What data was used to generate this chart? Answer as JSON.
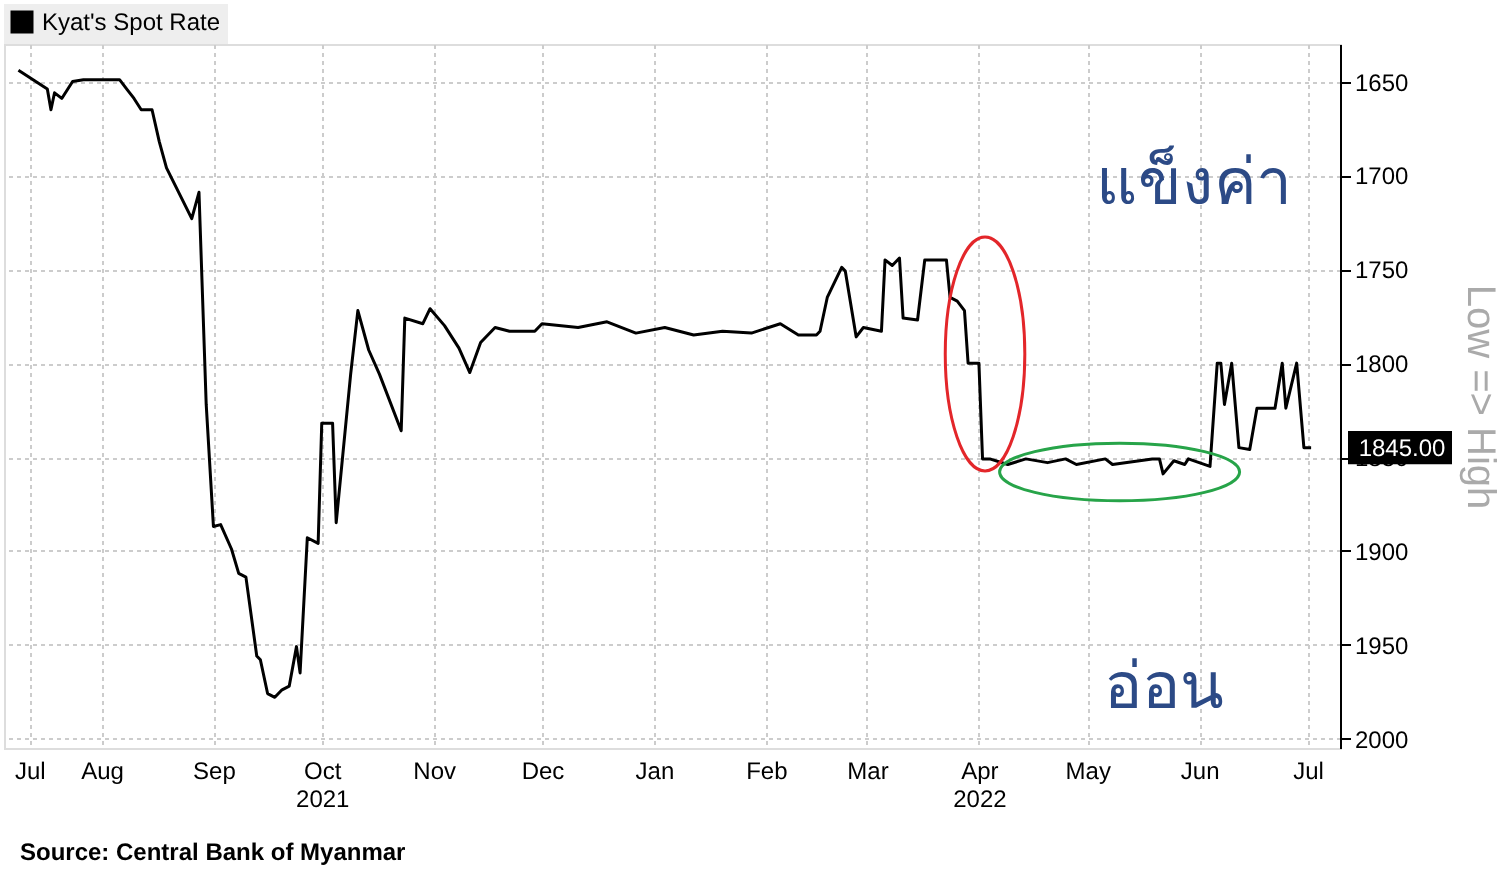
{
  "chart_data": {
    "type": "line",
    "ylabel": "Low => High",
    "legend": "top left",
    "grid": true,
    "line_style": "solid",
    "x": [
      "2021-07-23",
      "2021-07-31",
      "2021-08-01",
      "2021-08-02",
      "2021-08-04",
      "2021-08-07",
      "2021-08-10",
      "2021-08-20",
      "2021-08-22",
      "2021-08-24",
      "2021-08-26",
      "2021-08-29",
      "2021-08-31",
      "2021-09-02",
      "2021-09-09",
      "2021-09-11",
      "2021-09-13",
      "2021-09-15",
      "2021-09-17",
      "2021-09-20",
      "2021-09-22",
      "2021-09-24",
      "2021-09-27",
      "2021-09-28",
      "2021-09-30",
      "2021-10-02",
      "2021-10-04",
      "2021-10-06",
      "2021-10-08",
      "2021-10-09",
      "2021-10-11",
      "2021-10-14",
      "2021-10-15",
      "2021-10-18",
      "2021-10-19",
      "2021-10-23",
      "2021-10-25",
      "2021-10-28",
      "2021-10-31",
      "2021-11-06",
      "2021-11-07",
      "2021-11-12",
      "2021-11-14",
      "2021-11-18",
      "2021-11-22",
      "2021-11-25",
      "2021-11-28",
      "2021-12-02",
      "2021-12-06",
      "2021-12-13",
      "2021-12-15",
      "2021-12-25",
      "2022-01-02",
      "2022-01-10",
      "2022-01-18",
      "2022-01-26",
      "2022-02-03",
      "2022-02-11",
      "2022-02-19",
      "2022-02-24",
      "2022-02-27",
      "2022-03-01",
      "2022-03-02",
      "2022-03-04",
      "2022-03-05",
      "2022-03-08",
      "2022-03-09",
      "2022-03-12",
      "2022-03-14",
      "2022-03-19",
      "2022-03-20",
      "2022-03-22",
      "2022-03-24",
      "2022-03-25",
      "2022-03-29",
      "2022-03-31",
      "2022-04-05",
      "2022-04-06",
      "2022-04-07",
      "2022-04-09",
      "2022-04-11",
      "2022-04-12",
      "2022-04-15",
      "2022-04-16",
      "2022-04-18",
      "2022-04-23",
      "2022-04-28",
      "2022-05-04",
      "2022-05-09",
      "2022-05-12",
      "2022-05-20",
      "2022-05-22",
      "2022-06-02",
      "2022-06-04",
      "2022-06-05",
      "2022-06-08",
      "2022-06-11",
      "2022-06-12",
      "2022-06-18",
      "2022-06-20",
      "2022-06-21",
      "2022-06-22",
      "2022-06-24",
      "2022-06-26",
      "2022-06-29",
      "2022-07-01",
      "2022-07-06",
      "2022-07-08",
      "2022-07-09",
      "2022-07-12",
      "2022-07-14",
      "2022-07-16"
    ],
    "series": [
      {
        "name": "Kyat's Spot Rate",
        "color": "#000000",
        "values": [
          1644,
          1654,
          1665,
          1656,
          1659,
          1650,
          1649,
          1649,
          1654,
          1659,
          1665,
          1665,
          1682,
          1696,
          1723,
          1709,
          1822,
          1887,
          1886,
          1899,
          1912,
          1914,
          1956,
          1958,
          1976,
          1978,
          1974,
          1972,
          1951,
          1965,
          1893,
          1896,
          1832,
          1832,
          1885,
          1806,
          1772,
          1793,
          1806,
          1836,
          1776,
          1779,
          1771,
          1780,
          1792,
          1805,
          1789,
          1781,
          1783,
          1783,
          1779,
          1781,
          1778,
          1784,
          1781,
          1785,
          1783,
          1784,
          1779,
          1785,
          1785,
          1785,
          1783,
          1765,
          1761,
          1749,
          1751,
          1786,
          1781,
          1783,
          1745,
          1748,
          1744,
          1776,
          1777,
          1745,
          1745,
          1745,
          1765,
          1767,
          1772,
          1800,
          1800,
          1851,
          1851,
          1854,
          1851,
          1853,
          1851,
          1854,
          1851,
          1854,
          1851,
          1851,
          1859,
          1852,
          1854,
          1851,
          1855,
          1800,
          1800,
          1822,
          1800,
          1845,
          1846,
          1824,
          1824,
          1800,
          1824,
          1800,
          1845,
          1845
        ]
      }
    ],
    "xlim": [
      "2021-07-19",
      "2022-07-24"
    ],
    "xticks": [
      {
        "value": "2021-07-26",
        "label": "Jul"
      },
      {
        "value": "2021-08-15",
        "label": "Aug"
      },
      {
        "value": "2021-09-15",
        "label": "Sep"
      },
      {
        "value": "2021-10-15",
        "label": "Oct\n2021"
      },
      {
        "value": "2021-11-15",
        "label": "Nov"
      },
      {
        "value": "2021-12-15",
        "label": "Dec"
      },
      {
        "value": "2022-01-15",
        "label": "Jan"
      },
      {
        "value": "2022-02-15",
        "label": "Feb"
      },
      {
        "value": "2022-03-15",
        "label": "Mar"
      },
      {
        "value": "2022-04-15",
        "label": "Apr\n2022"
      },
      {
        "value": "2022-05-15",
        "label": "May"
      },
      {
        "value": "2022-06-15",
        "label": "Jun"
      },
      {
        "value": "2022-07-15",
        "label": "Jul"
      }
    ],
    "ylim": [
      2005,
      1630
    ],
    "yticks": [
      1650,
      1700,
      1750,
      1800,
      1850,
      1900,
      1950,
      2000
    ],
    "annotations": [
      "Source: Central Bank of Myanmar",
      "แข็งค่า",
      "อ่อน",
      {
        "text": "1845.00",
        "x": "2022-07-16",
        "y": 1845
      }
    ]
  }
}
